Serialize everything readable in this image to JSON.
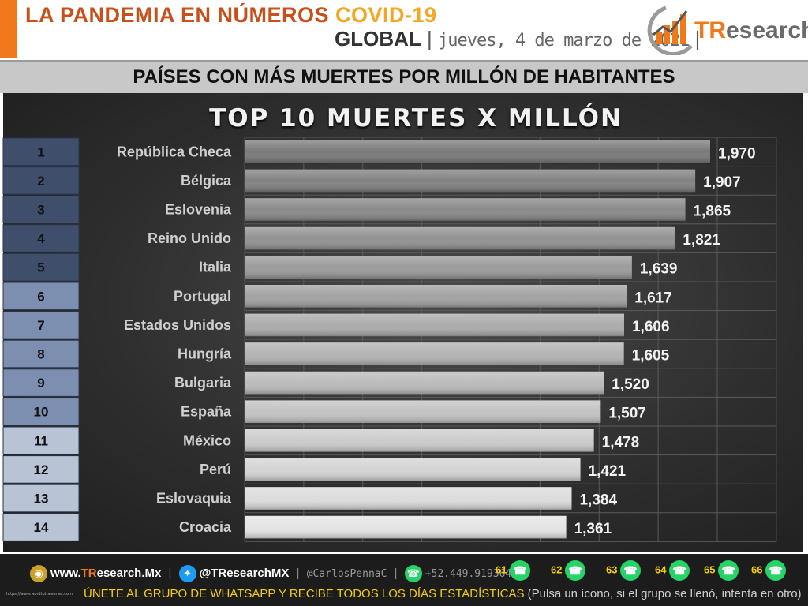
{
  "header": {
    "title_main": "LA PANDEMIA EN NÚMEROS",
    "title_accent": "COVID-19",
    "scope": "GLOBAL",
    "date": "jueves, 4 de marzo de 2021",
    "logo_brand_prefix": "TR",
    "logo_brand_rest": "esearch",
    "accent_color": "#f07a1a"
  },
  "section_title": "PAÍSES CON MÁS MUERTES POR MILLÓN DE HABITANTES",
  "chart_data": {
    "type": "bar",
    "orientation": "horizontal",
    "title": "TOP 10 MUERTES X MILLÓN",
    "ranks": [
      "1",
      "2",
      "3",
      "4",
      "5",
      "6",
      "7",
      "8",
      "9",
      "10",
      "11",
      "12",
      "13",
      "14"
    ],
    "categories": [
      "República Checa",
      "Bélgica",
      "Eslovenia",
      "Reino Unido",
      "Italia",
      "Portugal",
      "Estados Unidos",
      "Hungría",
      "Bulgaria",
      "España",
      "México",
      "Perú",
      "Eslovaquia",
      "Croacia"
    ],
    "values": [
      1970,
      1907,
      1865,
      1821,
      1639,
      1617,
      1606,
      1605,
      1520,
      1507,
      1478,
      1421,
      1384,
      1361
    ],
    "value_labels": [
      "1,970",
      "1,907",
      "1,865",
      "1,821",
      "1,639",
      "1,617",
      "1,606",
      "1,605",
      "1,520",
      "1,507",
      "1,478",
      "1,421",
      "1,384",
      "1,361"
    ],
    "xlim": [
      0,
      2250
    ],
    "grid": true,
    "rank_colors": {
      "top5": "#3f4f6b",
      "top10": "#7d8fb0",
      "rest": "#b9c3d6"
    },
    "bar_colors": {
      "dark": "#7a7a7a",
      "light": "#e4e4e4"
    }
  },
  "footer": {
    "website_prefix": "www.",
    "website_brand": "TR",
    "website_rest": "esearch.Mx",
    "twitter": "@TResearchMX",
    "personal": "@CarlosPennaC",
    "phone": "+52.449.9193645",
    "groups": [
      "61",
      "62",
      "63",
      "64",
      "65",
      "66"
    ],
    "cta": "ÚNETE AL GRUPO DE WHATSAPP Y RECIBE TODOS LOS DÍAS ESTADÍSTICAS",
    "cta_note": "(Pulsa un ícono, si el grupo se llenó, intenta en otro)",
    "tiny_url": "https://www.wordtotheseries.com"
  }
}
